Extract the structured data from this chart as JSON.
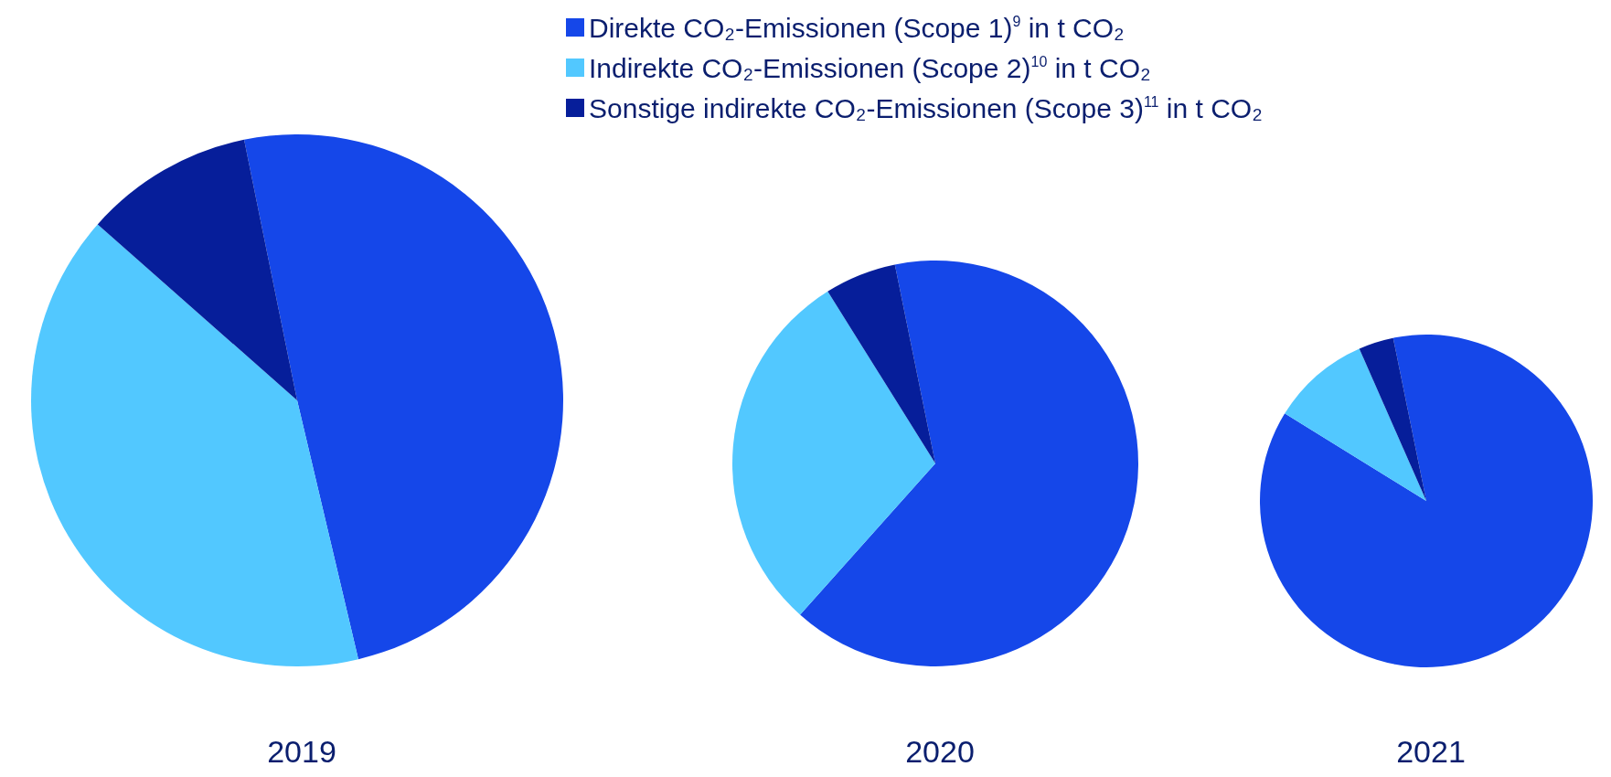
{
  "chart_data": {
    "type": "pie",
    "categories": [
      "Direkte CO₂-Emissionen (Scope 1)$^{9}$ in t CO₂",
      "Indirekte CO₂-Emissionen (Scope 2)$^{10}$ in t CO₂",
      "Sonstige indirekte CO₂-Emissionen (Scope 3)$^{11}$ in t CO₂"
    ],
    "colors": [
      "#1547e9",
      "#52c8ff",
      "#061e9a"
    ],
    "series": [
      {
        "name": "2019",
        "values": [
          49.5,
          40.2,
          10.3
        ]
      },
      {
        "name": "2020",
        "values": [
          64.8,
          29.5,
          5.7
        ]
      },
      {
        "name": "2021",
        "values": [
          87.0,
          9.6,
          3.4
        ]
      }
    ],
    "legend": "top"
  }
}
